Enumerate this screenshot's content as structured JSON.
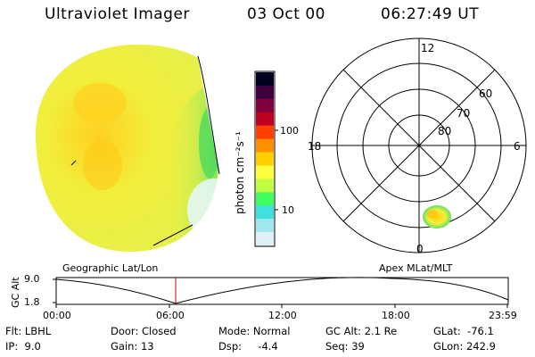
{
  "header": {
    "instrument": "Ultraviolet Imager",
    "date": "03 Oct 00",
    "time": "06:27:49 UT"
  },
  "image_panel": {
    "left_label": "Geographic Lat/Lon",
    "right_label": "Apex MLat/MLT"
  },
  "colorbar": {
    "unit_label": "photon cm⁻²s⁻¹",
    "ticks": [
      "100",
      "10"
    ],
    "colors": [
      "#000020",
      "#400040",
      "#800040",
      "#c00020",
      "#ff4000",
      "#ff9000",
      "#ffd000",
      "#ffff40",
      "#c0ff40",
      "#40ff60",
      "#40e0e0",
      "#a0e8f0",
      "#e0f0f8"
    ]
  },
  "polar_plot": {
    "mlt_labels": [
      "12",
      "18",
      "6",
      "0"
    ],
    "lat_labels": [
      "60",
      "70",
      "80"
    ]
  },
  "timeline": {
    "y_label": "GC Alt",
    "y_ticks": [
      "9.0",
      "1.8"
    ],
    "x_ticks": [
      "00:00",
      "06:00",
      "12:00",
      "18:00",
      "23:59"
    ],
    "current_marker": "06:27:49"
  },
  "info": {
    "filter": "Flt: LBHL",
    "ip": "IP:  9.0",
    "door": "Door: Closed",
    "gain": "Gain: 13",
    "mode": "Mode: Normal",
    "dsp": "Dsp:     -4.4",
    "gc_alt": "GC Alt: 2.1 Re",
    "seq": "Seq: 39",
    "glat": "GLat:  -76.1",
    "glon": "GLon: 242.9"
  },
  "colors": {
    "disk_main": "#f0f040",
    "disk_bright": "#ffd000",
    "disk_edge": "#40e060",
    "marker": "#c00000"
  }
}
